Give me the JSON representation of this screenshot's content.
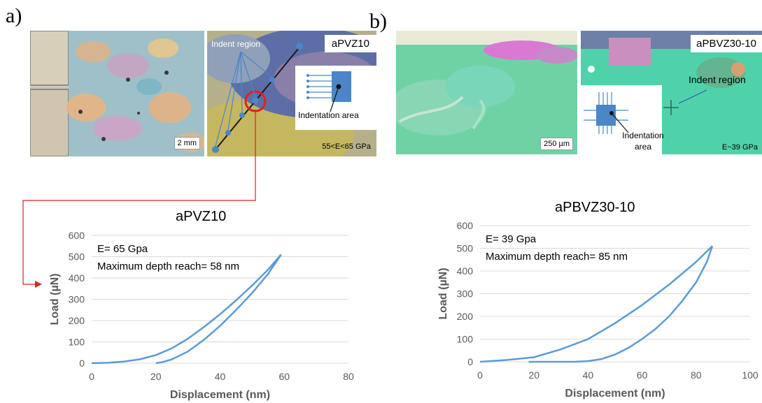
{
  "panel_a": {
    "letter": "a)",
    "image_left": {
      "scale_bar": "2 mm"
    },
    "image_right": {
      "sample_label": "aPVZ10",
      "indent_region_label": "Indent region",
      "indentation_area_label": "Indentation area",
      "modulus_range": "55<E<65 GPa"
    },
    "chart_title": "aPVZ10"
  },
  "panel_b": {
    "letter": "b)",
    "image_left": {
      "scale_bar": "250 µm"
    },
    "image_right": {
      "sample_label": "aPBVZ30-10",
      "indent_region_label": "Indent region",
      "indentation_area_label": "Indentation\narea",
      "modulus": "E~39 GPa"
    },
    "chart_title": "aPBVZ30-10"
  },
  "chart_data": [
    {
      "type": "line",
      "title": "aPVZ10",
      "xlabel": "Displacement (nm)",
      "ylabel": "Load (µN)",
      "xlim": [
        0,
        80
      ],
      "ylim": [
        0,
        600
      ],
      "xticks": [
        0,
        20,
        40,
        60,
        80
      ],
      "yticks": [
        0,
        100,
        200,
        300,
        400,
        500,
        600
      ],
      "grid": true,
      "annotations": [
        "E= 65 Gpa",
        "Maximum depth reach= 58 nm"
      ],
      "series": [
        {
          "x": [
            0,
            5,
            10,
            15,
            20,
            25,
            30,
            35,
            40,
            45,
            50,
            55,
            59
          ],
          "y": [
            0,
            2,
            8,
            18,
            38,
            70,
            115,
            170,
            230,
            295,
            365,
            440,
            510
          ]
        },
        {
          "x": [
            59,
            55,
            50,
            45,
            40,
            35,
            30,
            25,
            22,
            20
          ],
          "y": [
            510,
            420,
            330,
            250,
            175,
            110,
            55,
            18,
            5,
            0
          ]
        }
      ]
    },
    {
      "type": "line",
      "title": "aPBVZ30-10",
      "xlabel": "Displacement (nm)",
      "ylabel": "Load (µN)",
      "xlim": [
        0,
        100
      ],
      "ylim": [
        0,
        600
      ],
      "xticks": [
        0,
        20,
        40,
        60,
        80,
        100
      ],
      "yticks": [
        0,
        100,
        200,
        300,
        400,
        500,
        600
      ],
      "grid": true,
      "annotations": [
        "E= 39 Gpa",
        "Maximum depth reach= 85 nm"
      ],
      "series": [
        {
          "x": [
            0,
            10,
            20,
            30,
            40,
            50,
            60,
            70,
            80,
            86
          ],
          "y": [
            0,
            8,
            20,
            55,
            100,
            170,
            250,
            340,
            440,
            510
          ]
        },
        {
          "x": [
            86,
            84,
            80,
            75,
            70,
            65,
            60,
            55,
            50,
            45,
            40,
            35,
            30,
            25,
            18
          ],
          "y": [
            510,
            440,
            350,
            270,
            200,
            145,
            100,
            62,
            32,
            12,
            3,
            0,
            0,
            0,
            0
          ]
        }
      ]
    }
  ],
  "colors": {
    "series": "#5b9bd5",
    "callout": "#e02020"
  }
}
